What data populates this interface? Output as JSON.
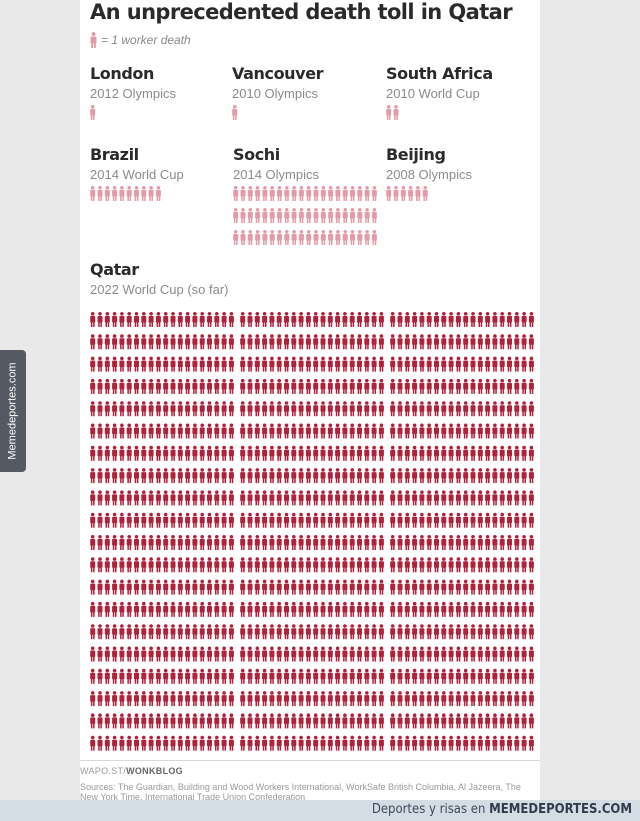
{
  "infographic": {
    "title": "An unprecedented death toll in Qatar",
    "legend_text": "= 1 worker death"
  },
  "chart_data": {
    "type": "pictogram",
    "unit": "1 worker death",
    "colors": {
      "highlight": "#b0223a",
      "others": "#e39ba9"
    },
    "series": [
      {
        "name": "London",
        "event": "2012 Olympics",
        "value": 1
      },
      {
        "name": "Vancouver",
        "event": "2010 Olympics",
        "value": 1
      },
      {
        "name": "South Africa",
        "event": "2010 World Cup",
        "value": 2
      },
      {
        "name": "Brazil",
        "event": "2014 World Cup",
        "value": 10
      },
      {
        "name": "Sochi",
        "event": "2014 Olympics",
        "value": 60
      },
      {
        "name": "Beijing",
        "event": "2008 Olympics",
        "value": 6
      },
      {
        "name": "Qatar",
        "event": "2022 World Cup (so far)",
        "value": 1200
      }
    ]
  },
  "footer": {
    "credit_prefix": "WAPO.ST/",
    "credit_brand": "WONKBLOG",
    "sources": "Sources: The Guardian, Building and Wood Workers International, WorkSafe British Columbia, Al Jazeera, The New York Time, International Trade Union Confederation"
  },
  "watermark": {
    "side_text": "Memedeportes.com"
  },
  "bottom_bar": {
    "tagline_prefix": "Deportes y risas en ",
    "tagline_brand": "MEMEDEPORTES.COM"
  }
}
